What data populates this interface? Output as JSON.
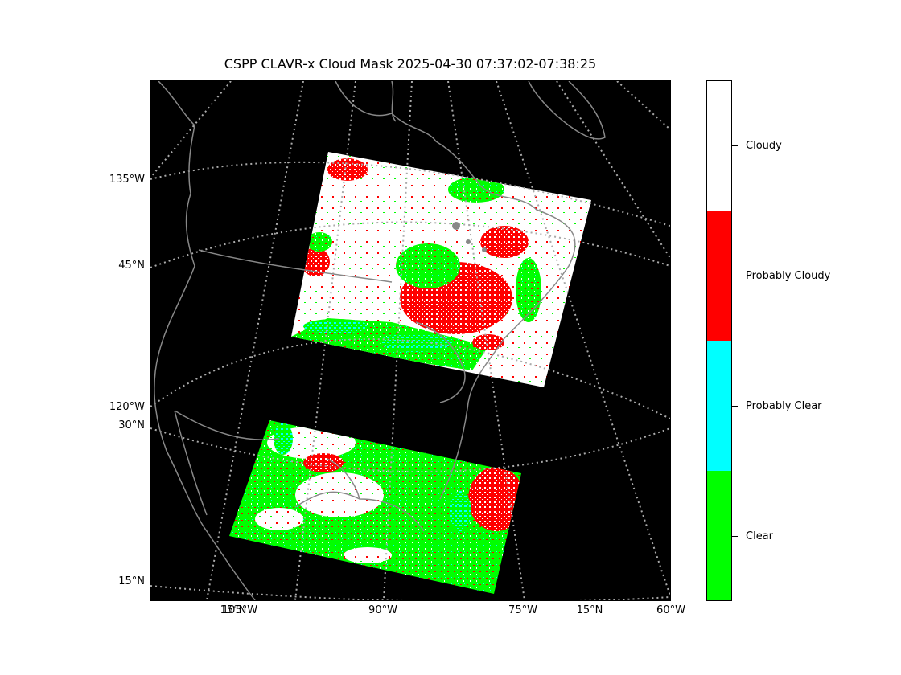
{
  "title": "CSPP CLAVR-x Cloud Mask 2025-04-30 07:37:02-07:38:25",
  "map": {
    "background": "#000000",
    "coastline_color": "#888888",
    "grid_color": "#aaaaaa",
    "lat_labels": [
      "135°W",
      "45°N",
      "120°W",
      "30°N",
      "15°N"
    ],
    "lon_labels": [
      "105°W",
      "15°N",
      "90°W",
      "75°W",
      "15°N",
      "60°W"
    ]
  },
  "colorbar": {
    "classes": [
      {
        "label": "Cloudy",
        "color": "#ffffff"
      },
      {
        "label": "Probably Cloudy",
        "color": "#ff0000"
      },
      {
        "label": "Probably Clear",
        "color": "#00ffff"
      },
      {
        "label": "Clear",
        "color": "#00ff00"
      }
    ]
  }
}
